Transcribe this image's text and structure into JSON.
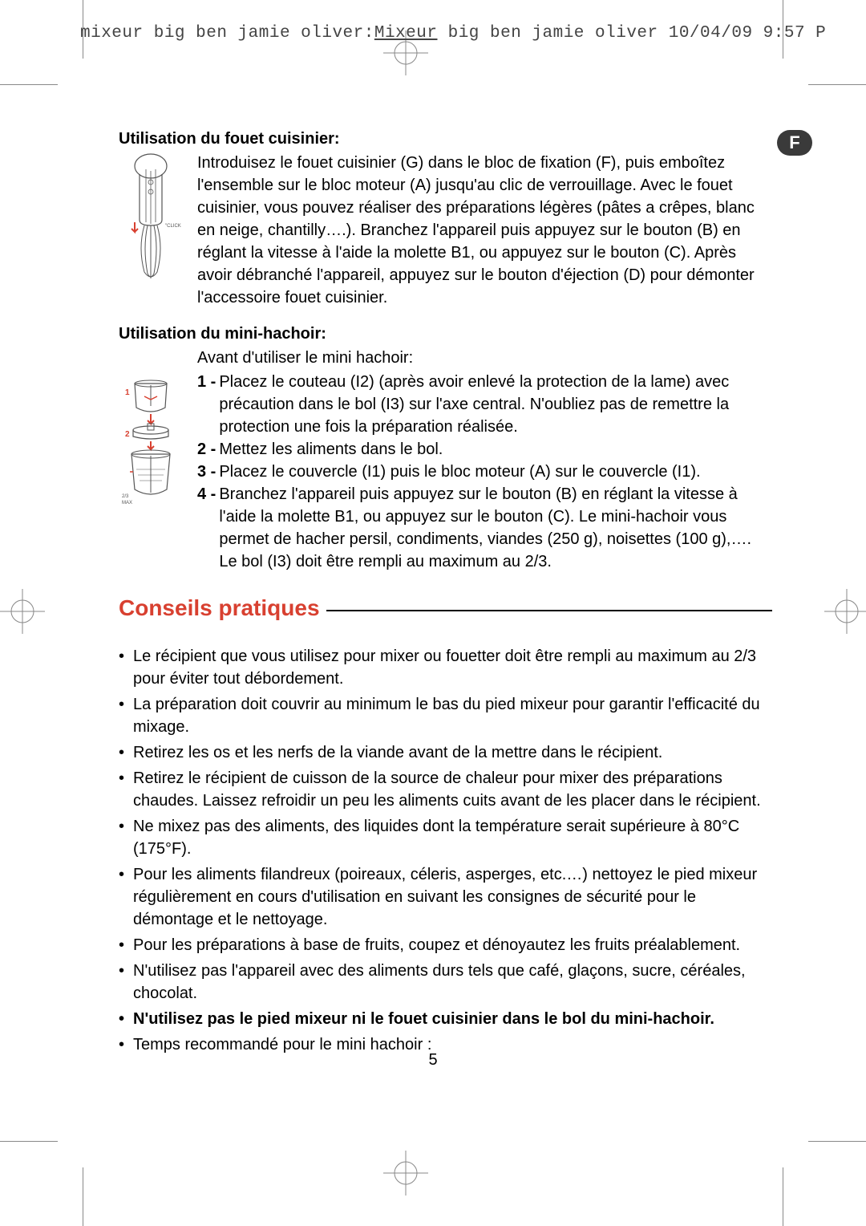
{
  "header": {
    "text_before": "mixeur big ben jamie oliver:",
    "text_under": "Mixeur",
    "text_after": " big ben jamie oliver  10/04/09  9:57  P"
  },
  "lang_badge": "F",
  "section1": {
    "heading": "Utilisation du fouet cuisinier:",
    "body": "Introduisez le fouet cuisinier (G) dans le bloc de fixation (F), puis emboîtez l'ensemble sur le bloc moteur (A) jusqu'au clic de verrouillage. Avec le fouet cuisinier, vous pouvez réaliser des préparations légères (pâtes a crêpes, blanc en neige, chantilly….). Branchez l'appareil puis appuyez sur le bouton (B) en réglant la vitesse à l'aide la molette B1, ou appuyez sur le bouton (C). Après avoir débranché l'appareil, appuyez sur le bouton d'éjection (D) pour démonter l'accessoire fouet cuisinier.",
    "click_label": "\"CLICK\""
  },
  "section2": {
    "heading": "Utilisation du mini-hachoir:",
    "intro": "Avant d'utiliser le mini hachoir:",
    "steps": [
      {
        "num": "1",
        "text": "Placez le couteau (I2) (après avoir enlevé la protection de la lame) avec précaution dans le bol (I3) sur l'axe central. N'oubliez pas de remettre la protection une fois la préparation réalisée."
      },
      {
        "num": "2",
        "text": "Mettez les aliments dans le bol."
      },
      {
        "num": "3",
        "text": "Placez le couvercle (I1) puis le bloc moteur (A) sur le couvercle (I1)."
      },
      {
        "num": "4",
        "text": "Branchez l'appareil puis appuyez sur le bouton (B) en réglant la vitesse à l'aide la molette B1, ou appuyez sur le bouton (C). Le mini-hachoir vous permet de hacher persil, condiments, viandes (250 g), noisettes (100 g),…. Le bol (I3) doit être rempli au maximum au 2/3."
      }
    ]
  },
  "tips_heading": "Conseils pratiques",
  "tips": [
    {
      "text": "Le récipient que vous utilisez pour mixer ou fouetter doit être rempli au maximum au 2/3 pour éviter tout débordement.",
      "bold": false
    },
    {
      "text": "La préparation doit couvrir au minimum le bas du pied mixeur pour garantir l'efficacité du mixage.",
      "bold": false
    },
    {
      "text": "Retirez les os et les nerfs de la viande avant de la mettre dans le récipient.",
      "bold": false
    },
    {
      "text": "Retirez le récipient de cuisson de la source de chaleur pour mixer des préparations chaudes. Laissez refroidir un peu les aliments cuits avant de les placer dans le récipient.",
      "bold": false
    },
    {
      "text": "Ne mixez pas des aliments, des liquides dont la température serait supérieure à 80°C (175°F).",
      "bold": false
    },
    {
      "text": "Pour les aliments filandreux (poireaux, céleris, asperges, etc.…) nettoyez le pied mixeur régulièrement en cours d'utilisation en suivant les consignes de sécurité pour le démontage et le nettoyage.",
      "bold": false
    },
    {
      "text": "Pour les préparations à base de fruits, coupez et dénoyautez les fruits préalablement.",
      "bold": false
    },
    {
      "text": "N'utilisez pas l'appareil avec des aliments durs tels que café, glaçons, sucre, céréales, chocolat.",
      "bold": false
    },
    {
      "text": "N'utilisez pas le pied mixeur ni le fouet cuisinier dans le bol du mini-hachoir.",
      "bold": true
    },
    {
      "text": "Temps recommandé pour le mini hachoir :",
      "bold": false
    }
  ],
  "page_number": "5",
  "colors": {
    "heading_red": "#d84030",
    "illus_red": "#d84030",
    "illus_stroke": "#555555"
  }
}
